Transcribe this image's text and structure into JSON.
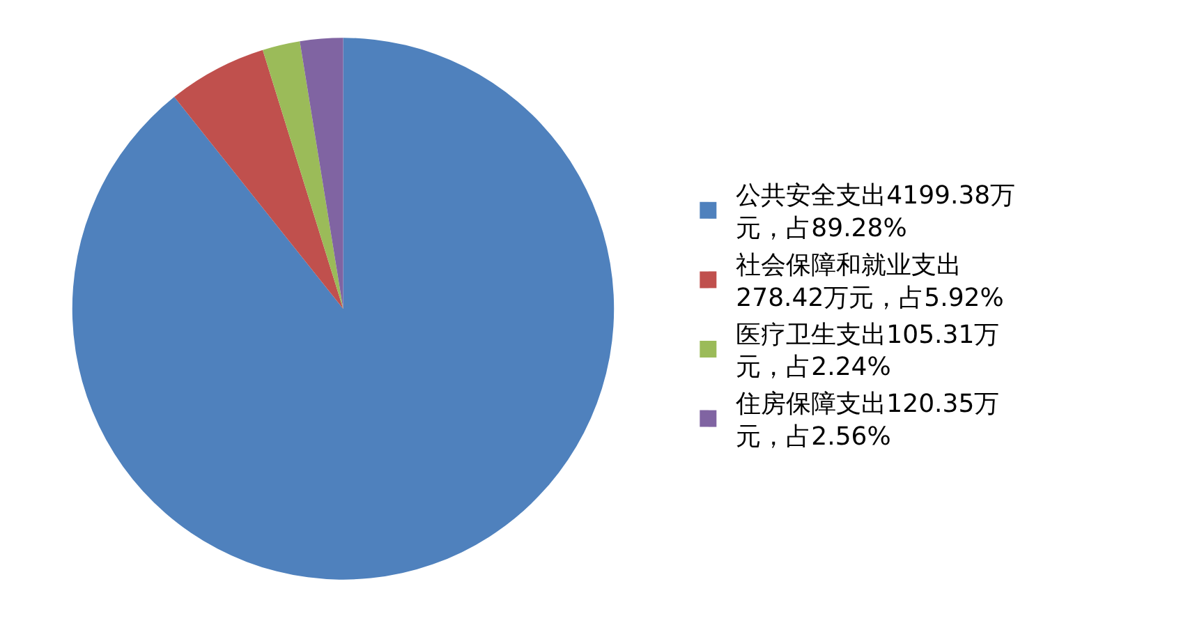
{
  "chart_data": {
    "type": "pie",
    "categories": [
      "公共安全支出4199.38万元，占89.28%",
      "社会保障和就业支出278.42万元，占5.92%",
      "医疗卫生支出105.31万元，占2.24%",
      "住房保障支出120.35万元，占2.56%"
    ],
    "values": [
      4199.38,
      278.42,
      105.31,
      120.35
    ],
    "colors": [
      "#4f81bd",
      "#c0504d",
      "#9bbb59",
      "#8064a2"
    ],
    "legend": "right"
  }
}
